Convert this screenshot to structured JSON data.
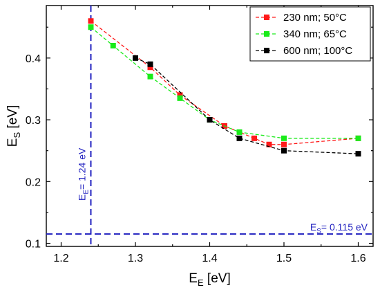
{
  "chart_data": {
    "type": "line",
    "title": "",
    "xlabel": {
      "main": "E",
      "sub": "E",
      "unit": " [eV]"
    },
    "ylabel": {
      "main": "E",
      "sub": "S",
      "unit": " [eV]"
    },
    "xlim": [
      1.18,
      1.62
    ],
    "ylim": [
      0.095,
      0.485
    ],
    "xticks": [
      1.2,
      1.3,
      1.4,
      1.5,
      1.6
    ],
    "xtick_labels": [
      "1.2",
      "1.3",
      "1.4",
      "1.5",
      "1.6"
    ],
    "yticks": [
      0.1,
      0.2,
      0.3,
      0.4
    ],
    "ytick_labels": [
      "0.1",
      "0.2",
      "0.3",
      "0.4"
    ],
    "grid": false,
    "legend_position": "top-right",
    "series": [
      {
        "name": "230 nm; 50°C",
        "color": "#ff1a1a",
        "points": [
          [
            1.24,
            0.46
          ],
          [
            1.32,
            0.385
          ],
          [
            1.36,
            0.34
          ],
          [
            1.42,
            0.29
          ],
          [
            1.46,
            0.27
          ],
          [
            1.48,
            0.26
          ],
          [
            1.5,
            0.26
          ],
          [
            1.6,
            0.27
          ]
        ]
      },
      {
        "name": "340 nm; 65°C",
        "color": "#1aeb1a",
        "points": [
          [
            1.24,
            0.45
          ],
          [
            1.27,
            0.42
          ],
          [
            1.32,
            0.37
          ],
          [
            1.36,
            0.335
          ],
          [
            1.4,
            0.3
          ],
          [
            1.44,
            0.28
          ],
          [
            1.5,
            0.27
          ],
          [
            1.6,
            0.27
          ]
        ]
      },
      {
        "name": "600 nm; 100°C",
        "color": "#000000",
        "points": [
          [
            1.3,
            0.4
          ],
          [
            1.32,
            0.39
          ],
          [
            1.4,
            0.3
          ],
          [
            1.44,
            0.27
          ],
          [
            1.5,
            0.25
          ],
          [
            1.6,
            0.245
          ]
        ]
      }
    ],
    "reference_lines": [
      {
        "orientation": "vertical",
        "value": 1.24,
        "color": "#1f1fbf",
        "label": {
          "main": "E",
          "sub": "E",
          "rest": "= 1.24 eV"
        }
      },
      {
        "orientation": "horizontal",
        "value": 0.115,
        "color": "#1f1fbf",
        "label": {
          "main": "E",
          "sub": "S",
          "rest": "= 0.115 eV"
        }
      }
    ]
  }
}
